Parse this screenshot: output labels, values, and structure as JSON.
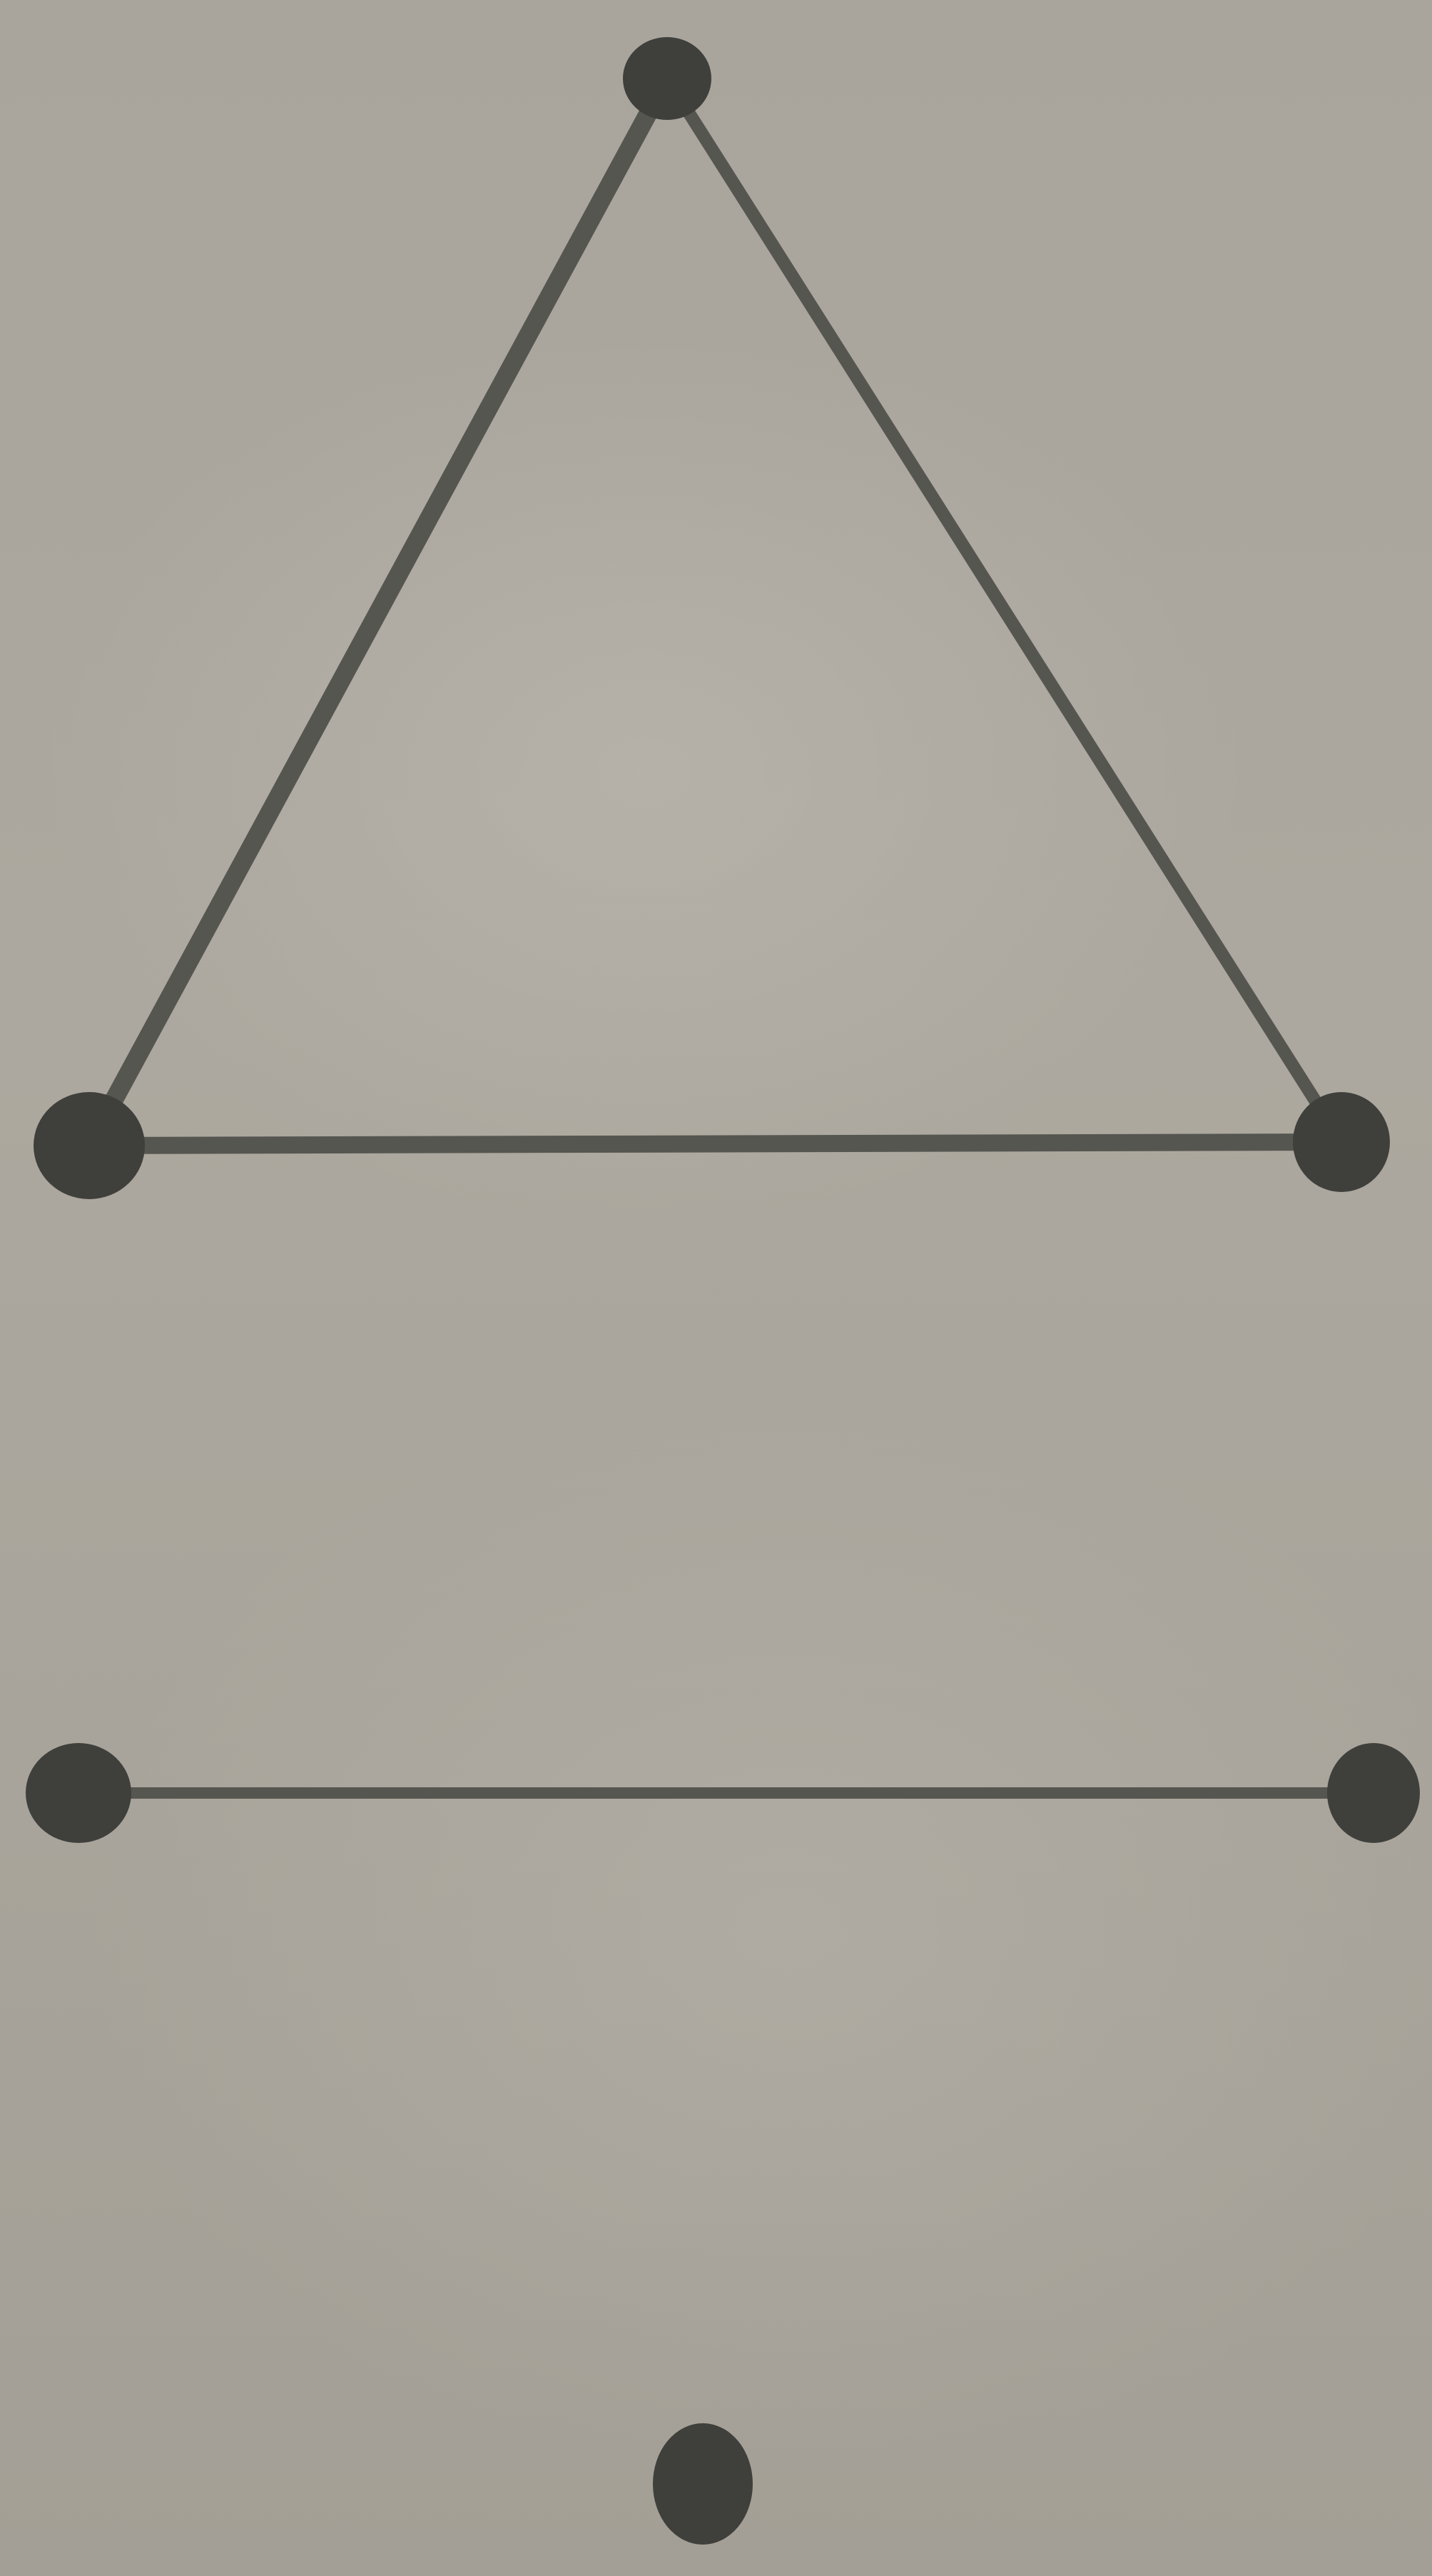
{
  "figure": {
    "ink_color": "#565650",
    "vertex_color": "#3f3f3b",
    "paper_color": "#aaa69e",
    "shapes": [
      {
        "name": "triangle",
        "vertices": 3,
        "edges": 3
      },
      {
        "name": "segment",
        "vertices": 2,
        "edges": 1
      },
      {
        "name": "point",
        "vertices": 1,
        "edges": 0
      }
    ]
  }
}
